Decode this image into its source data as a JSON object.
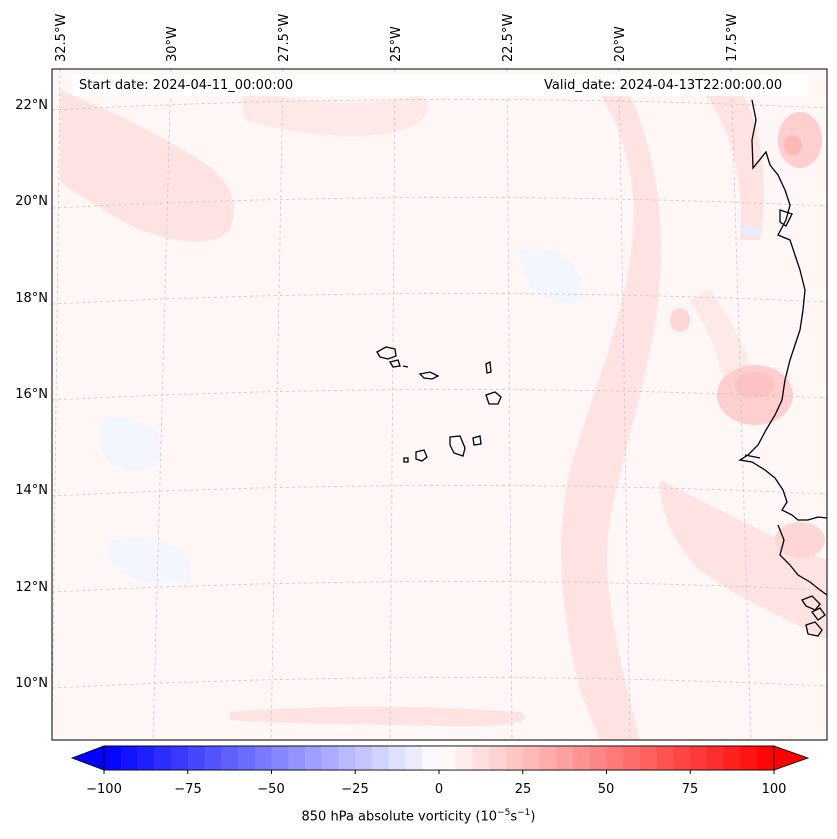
{
  "map": {
    "start_date": "Start date: 2024-04-11_00:00:00",
    "valid_date": "Valid_date: 2024-04-13T22:00:00.00",
    "lon_labels": [
      "32.5°W",
      "30°W",
      "27.5°W",
      "25°W",
      "22.5°W",
      "20°W",
      "17.5°W"
    ],
    "lat_labels": [
      "22°N",
      "20°N",
      "18°N",
      "16°N",
      "14°N",
      "12°N",
      "10°N"
    ]
  },
  "colorbar": {
    "label_main": "850 hPa absolute vorticity (10",
    "label_exp1": "−5",
    "label_mid": "s",
    "label_exp2": "−1",
    "label_end": ")",
    "min": -100,
    "max": 100,
    "ticks": [
      "−100",
      "−75",
      "−50",
      "−25",
      "0",
      "25",
      "50",
      "75",
      "100"
    ],
    "color_negative": "#0000ff",
    "color_zero": "#ffffff",
    "color_positive": "#ff0000"
  },
  "colors": {
    "coast": "#000000",
    "grid": "#c8c8c8",
    "frame": "#000000",
    "field_base": "#fff6f6",
    "field_pink": "#ffe3e3",
    "field_pink_strong": "#ffcfcf",
    "field_blue": "#f4f6ff"
  }
}
